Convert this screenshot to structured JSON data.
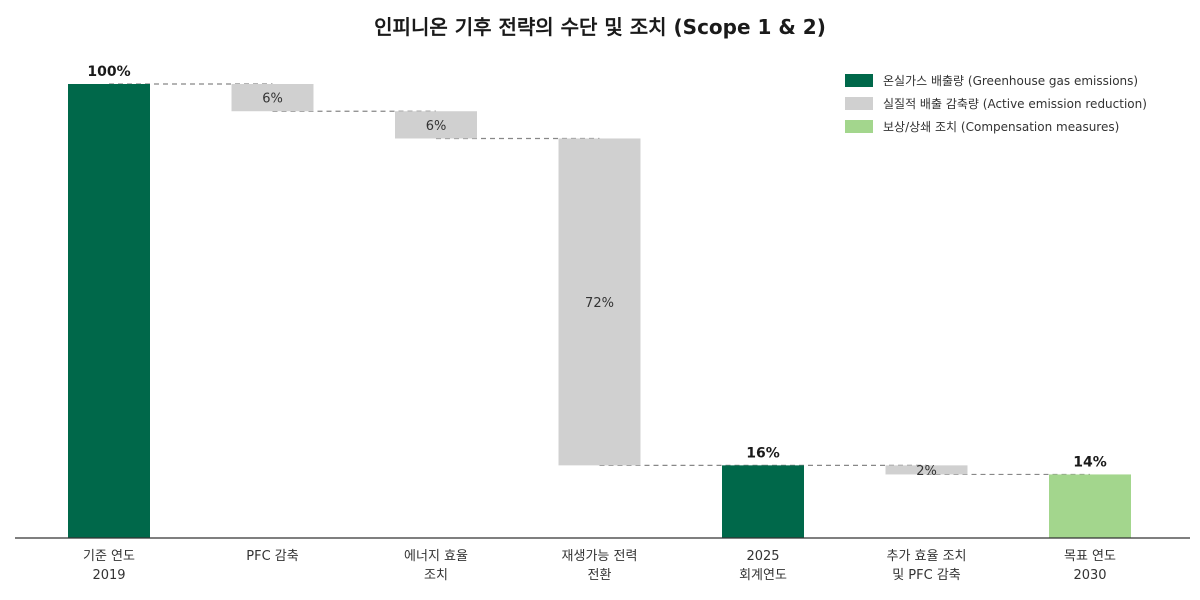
{
  "chart_data": {
    "type": "bar",
    "subtype": "waterfall",
    "title": "인피니온 기후 전략의 수단 및 조치 (Scope 1 & 2)",
    "xlabel": "",
    "ylabel": "",
    "ylim": [
      0,
      100
    ],
    "grid": false,
    "legend_position": "top-right",
    "colors": {
      "emissions": "#00684a",
      "reduction": "#d0d0d0",
      "compensation": "#a3d68d"
    },
    "legend": [
      {
        "key": "emissions",
        "label": "온실가스 배출량 (Greenhouse gas emissions)"
      },
      {
        "key": "reduction",
        "label": "실질적 배출 감축량 (Active emission reduction)"
      },
      {
        "key": "compensation",
        "label": "보상/상쇄 조치 (Compensation measures)"
      }
    ],
    "bars": [
      {
        "category": [
          "기준 연도",
          "2019"
        ],
        "kind": "emissions",
        "start": 0,
        "end": 100,
        "label": "100%"
      },
      {
        "category": [
          "PFC 감축"
        ],
        "kind": "reduction",
        "start": 94,
        "end": 100,
        "label": "6%"
      },
      {
        "category": [
          "에너지 효율",
          "조치"
        ],
        "kind": "reduction",
        "start": 88,
        "end": 94,
        "label": "6%"
      },
      {
        "category": [
          "재생가능 전력",
          "전환"
        ],
        "kind": "reduction",
        "start": 16,
        "end": 88,
        "label": "72%"
      },
      {
        "category": [
          "2025",
          "회계연도"
        ],
        "kind": "emissions",
        "start": 0,
        "end": 16,
        "label": "16%"
      },
      {
        "category": [
          "추가 효율 조치",
          "및 PFC 감축"
        ],
        "kind": "reduction",
        "start": 14,
        "end": 16,
        "label": "2%"
      },
      {
        "category": [
          "목표 연도",
          "2030"
        ],
        "kind": "compensation",
        "start": 0,
        "end": 14,
        "label": "14%"
      }
    ]
  }
}
